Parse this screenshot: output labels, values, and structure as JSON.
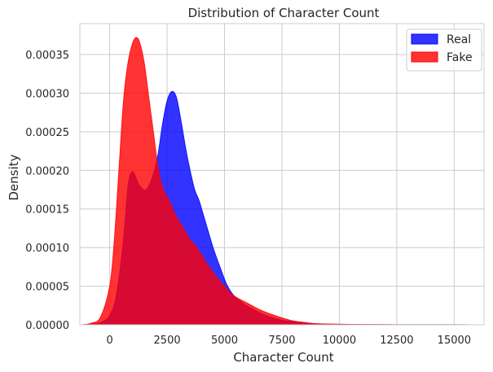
{
  "chart_data": {
    "type": "area",
    "title": "Distribution of Character Count",
    "xlabel": "Character Count",
    "ylabel": "Density",
    "xlim": [
      -1300,
      16300
    ],
    "ylim": [
      0,
      0.00039
    ],
    "xticks": [
      0,
      2500,
      5000,
      7500,
      10000,
      12500,
      15000
    ],
    "xtick_labels": [
      "0",
      "2500",
      "5000",
      "7500",
      "10000",
      "12500",
      "15000"
    ],
    "yticks": [
      0,
      5e-05,
      0.0001,
      0.00015,
      0.0002,
      0.00025,
      0.0003,
      0.00035
    ],
    "ytick_labels": [
      "0.00000",
      "0.00005",
      "0.00010",
      "0.00015",
      "0.00020",
      "0.00025",
      "0.00030",
      "0.00035"
    ],
    "grid": true,
    "legend": {
      "placement": "top-right"
    },
    "series": [
      {
        "name": "Real",
        "color": "#0000ff",
        "x": [
          -1200,
          -800,
          -400,
          0,
          300,
          600,
          800,
          1000,
          1300,
          1600,
          1900,
          2100,
          2300,
          2500,
          2700,
          2900,
          3100,
          3300,
          3500,
          3700,
          3900,
          4200,
          4500,
          4800,
          5100,
          5400,
          5700,
          6000,
          6500,
          7000,
          7500,
          8000,
          8500,
          9000,
          10000,
          11000,
          12000,
          13000,
          14000,
          15000,
          15800
        ],
        "values": [
          0,
          1e-06,
          3e-06,
          1.2e-05,
          4e-05,
          0.00011,
          0.00018,
          0.000198,
          0.00018,
          0.000175,
          0.000195,
          0.00022,
          0.00026,
          0.00029,
          0.000302,
          0.000295,
          0.000265,
          0.00023,
          0.0002,
          0.000175,
          0.00016,
          0.00013,
          0.0001,
          7.5e-05,
          5.2e-05,
          3.8e-05,
          3e-05,
          2.4e-05,
          1.6e-05,
          1e-05,
          6e-06,
          4e-06,
          2e-06,
          1.2e-06,
          6e-07,
          3e-07,
          2e-07,
          1e-07,
          1e-07,
          1e-07,
          0
        ]
      },
      {
        "name": "Fake",
        "color": "#ff0000",
        "x": [
          -1200,
          -800,
          -400,
          0,
          200,
          400,
          600,
          800,
          1000,
          1150,
          1300,
          1500,
          1700,
          1900,
          2100,
          2300,
          2600,
          2900,
          3200,
          3500,
          3800,
          4100,
          4400,
          4700,
          5000,
          5300,
          5600,
          6000,
          6500,
          7000,
          7500,
          8000,
          8500,
          9000,
          10000,
          11000,
          12000,
          13000,
          14000,
          15000,
          15800
        ],
        "values": [
          0,
          2e-06,
          1e-05,
          5e-05,
          0.00011,
          0.0002,
          0.00029,
          0.00034,
          0.000365,
          0.000372,
          0.000366,
          0.00034,
          0.000295,
          0.00025,
          0.000205,
          0.000178,
          0.00016,
          0.00014,
          0.000125,
          0.00011,
          0.0001,
          8.5e-05,
          7.2e-05,
          6e-05,
          5e-05,
          4e-05,
          3.4e-05,
          2.8e-05,
          2e-05,
          1.4e-05,
          9e-06,
          5e-06,
          3e-06,
          1.5e-06,
          7e-07,
          4e-07,
          2e-07,
          1e-07,
          1e-07,
          1e-07,
          0
        ]
      }
    ]
  }
}
